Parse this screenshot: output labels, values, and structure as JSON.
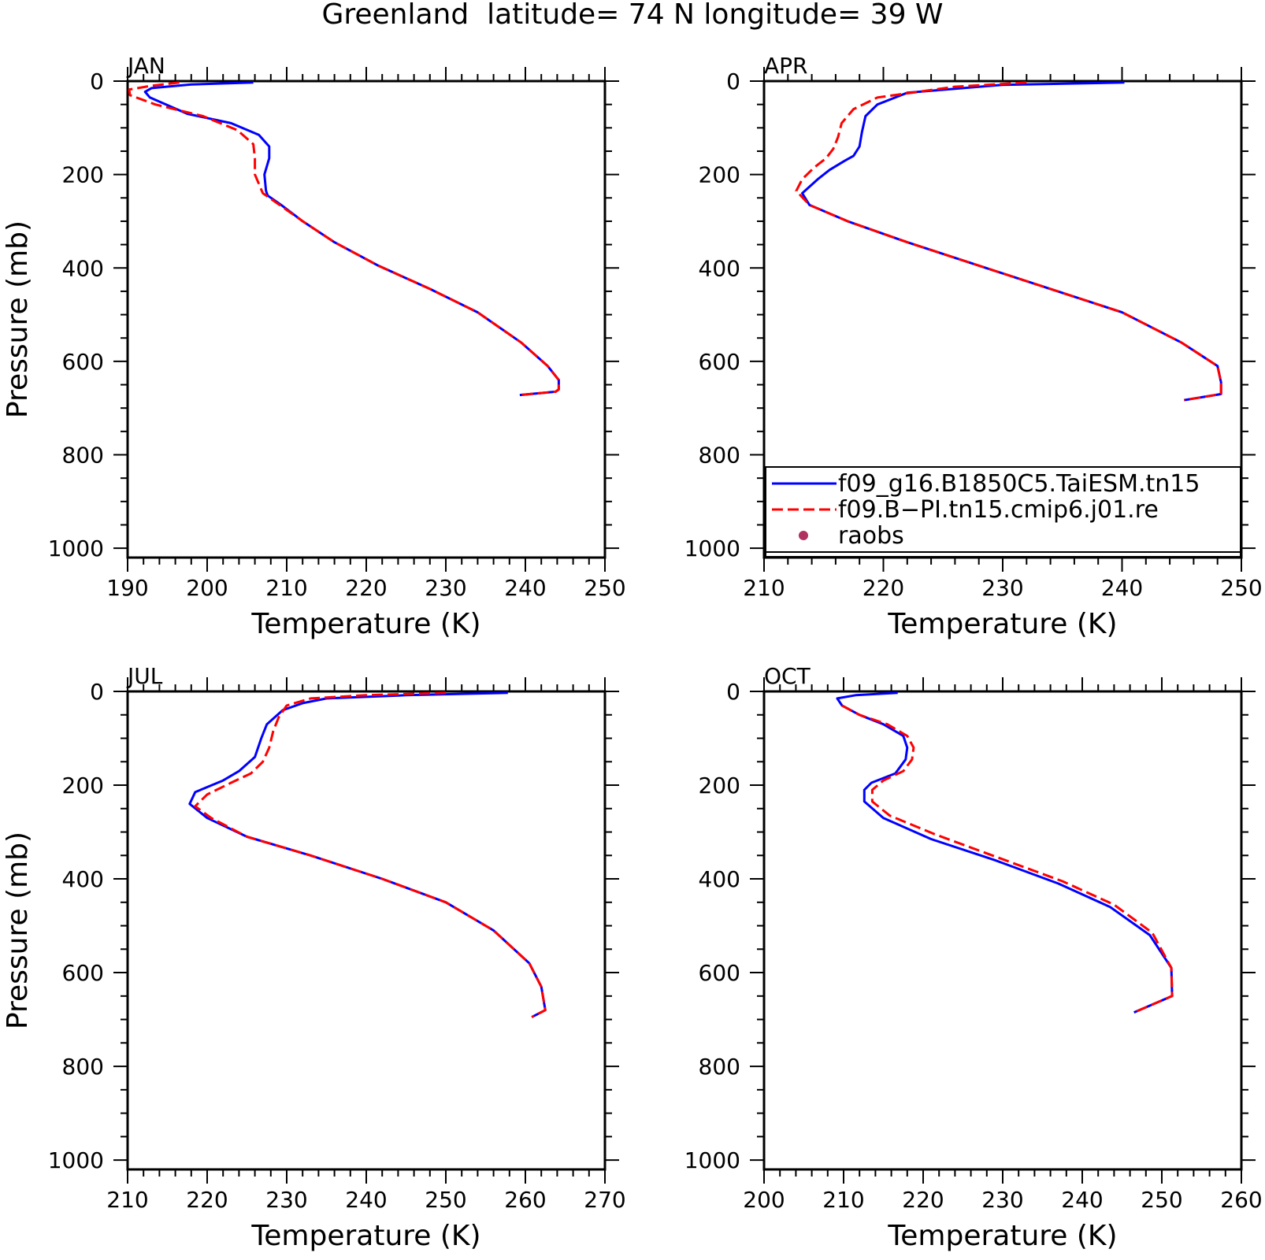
{
  "figure": {
    "title": "Greenland  latitude= 74 N longitude= 39 W"
  },
  "legend": {
    "entries": [
      {
        "label": "f09_g16.B1850C5.TaiESM.tn15",
        "color": "#0000ff",
        "style": "solid"
      },
      {
        "label": "f09.B−PI.tn15.cmip6.j01.re",
        "color": "#ff0000",
        "style": "dashed"
      },
      {
        "label": "raobs",
        "color": "#b03060",
        "style": "marker"
      }
    ]
  },
  "chart_data": [
    {
      "type": "line",
      "panel_label": "JAN",
      "xlabel": "Temperature (K)",
      "ylabel": "Pressure (mb)",
      "xlim": [
        190,
        250
      ],
      "ylim": [
        1020,
        0
      ],
      "xticks": [
        190,
        200,
        210,
        220,
        230,
        240,
        250
      ],
      "yticks": [
        0,
        200,
        400,
        600,
        800,
        1000
      ],
      "grid": false,
      "series": [
        {
          "name": "f09_g16.B1850C5.TaiESM.tn15",
          "x": [
            205.8,
            198,
            193,
            192.2,
            192.8,
            197.5,
            203,
            206.5,
            207.8,
            207.8,
            207.2,
            207.4,
            207.6,
            209.3,
            212,
            216,
            221.5,
            228,
            234,
            239.5,
            242.8,
            244.2,
            244.2,
            243.8,
            239.3
          ],
          "y": [
            3,
            7,
            15,
            23,
            35,
            70,
            90,
            115,
            140,
            165,
            200,
            235,
            245,
            265,
            300,
            345,
            395,
            445,
            495,
            560,
            610,
            640,
            660,
            665,
            672
          ]
        },
        {
          "name": "f09.B−PI.tn15.cmip6.j01.re",
          "x": [
            196.5,
            193,
            190.2,
            190.3,
            193.5,
            199.5,
            203.8,
            205.8,
            206,
            206,
            207,
            209.5,
            212,
            216,
            221.5,
            228,
            234,
            239.5,
            242.8,
            244.2,
            244.2,
            243.8,
            239.3
          ],
          "y": [
            3,
            10,
            18,
            30,
            50,
            75,
            105,
            135,
            165,
            200,
            240,
            270,
            300,
            345,
            395,
            445,
            495,
            560,
            610,
            640,
            660,
            665,
            672
          ]
        }
      ]
    },
    {
      "type": "line",
      "panel_label": "APR",
      "xlabel": "Temperature (K)",
      "ylabel": "",
      "xlim": [
        210,
        250
      ],
      "ylim": [
        1020,
        0
      ],
      "xticks": [
        210,
        220,
        230,
        240,
        250
      ],
      "yticks": [
        0,
        200,
        400,
        600,
        800,
        1000
      ],
      "grid": false,
      "series": [
        {
          "name": "f09_g16.B1850C5.TaiESM.tn15",
          "x": [
            240.2,
            230,
            222,
            219.5,
            218.5,
            218.2,
            218,
            217.5,
            216.8,
            215.5,
            214.5,
            213.2,
            213.8,
            217,
            222,
            228,
            234,
            240,
            245,
            248,
            248.3,
            248.3,
            245.2
          ],
          "y": [
            3,
            8,
            25,
            50,
            75,
            110,
            140,
            160,
            170,
            190,
            210,
            240,
            265,
            300,
            345,
            395,
            445,
            495,
            560,
            610,
            645,
            670,
            683
          ]
        },
        {
          "name": "f09.B−PI.tn15.cmip6.j01.re",
          "x": [
            232,
            226,
            219.5,
            217.5,
            216.5,
            216.2,
            215.8,
            215.2,
            214.2,
            213.2,
            212.7,
            213.8,
            217,
            222,
            228,
            234,
            240,
            245,
            248,
            248.3,
            248.3,
            245.2
          ],
          "y": [
            3,
            12,
            35,
            60,
            90,
            120,
            145,
            165,
            185,
            210,
            235,
            265,
            300,
            345,
            395,
            445,
            495,
            560,
            610,
            645,
            670,
            683
          ]
        }
      ]
    },
    {
      "type": "line",
      "panel_label": "JUL",
      "xlabel": "Temperature (K)",
      "ylabel": "Pressure (mb)",
      "xlim": [
        210,
        270
      ],
      "ylim": [
        1020,
        0
      ],
      "xticks": [
        210,
        220,
        230,
        240,
        250,
        260,
        270
      ],
      "yticks": [
        0,
        200,
        400,
        600,
        800,
        1000
      ],
      "grid": false,
      "series": [
        {
          "name": "f09_g16.B1850C5.TaiESM.tn15",
          "x": [
            257.8,
            245,
            235,
            232,
            229.5,
            227.5,
            226.8,
            226,
            224,
            222,
            218.5,
            217.8,
            220,
            225,
            233,
            242,
            250,
            256,
            260.5,
            262,
            262.5,
            260.8
          ],
          "y": [
            3,
            8,
            15,
            25,
            40,
            70,
            100,
            140,
            170,
            190,
            215,
            240,
            270,
            310,
            350,
            400,
            450,
            510,
            580,
            630,
            680,
            695
          ]
        },
        {
          "name": "f09.B−PI.tn15.cmip6.j01.re",
          "x": [
            250,
            240,
            233,
            230,
            229,
            228.3,
            227.8,
            227,
            225.5,
            223,
            220,
            218.5,
            220.5,
            225,
            233,
            242,
            250,
            256,
            260.5,
            262,
            262.5,
            260.8
          ],
          "y": [
            3,
            8,
            15,
            30,
            55,
            85,
            120,
            150,
            175,
            195,
            220,
            245,
            270,
            310,
            350,
            400,
            450,
            510,
            580,
            630,
            680,
            695
          ]
        }
      ]
    },
    {
      "type": "line",
      "panel_label": "OCT",
      "xlabel": "Temperature (K)",
      "ylabel": "",
      "xlim": [
        200,
        260
      ],
      "ylim": [
        1020,
        0
      ],
      "xticks": [
        200,
        210,
        220,
        230,
        240,
        250,
        260
      ],
      "yticks": [
        0,
        200,
        400,
        600,
        800,
        1000
      ],
      "grid": false,
      "series": [
        {
          "name": "f09_g16.B1850C5.TaiESM.tn15",
          "x": [
            216.8,
            211.5,
            209.2,
            209.8,
            212,
            215,
            217.5,
            218,
            217.8,
            216.5,
            213.5,
            212.6,
            212.6,
            215,
            221,
            229,
            237,
            243.5,
            248.5,
            251.2,
            251.3,
            246.5
          ],
          "y": [
            3,
            8,
            15,
            30,
            50,
            70,
            95,
            120,
            145,
            175,
            195,
            210,
            235,
            270,
            315,
            360,
            410,
            460,
            520,
            590,
            650,
            685
          ]
        },
        {
          "name": "f09.B−PI.tn15.cmip6.j01.re",
          "x": [
            209.8,
            212,
            215.5,
            218,
            218.8,
            218.6,
            217.5,
            215,
            213.6,
            213.6,
            215.8,
            221.5,
            229.5,
            237.5,
            244,
            248.8,
            251.2,
            251.3,
            246.5
          ],
          "y": [
            30,
            50,
            70,
            95,
            120,
            145,
            170,
            190,
            210,
            235,
            265,
            305,
            355,
            405,
            455,
            515,
            590,
            650,
            685
          ]
        }
      ]
    }
  ]
}
